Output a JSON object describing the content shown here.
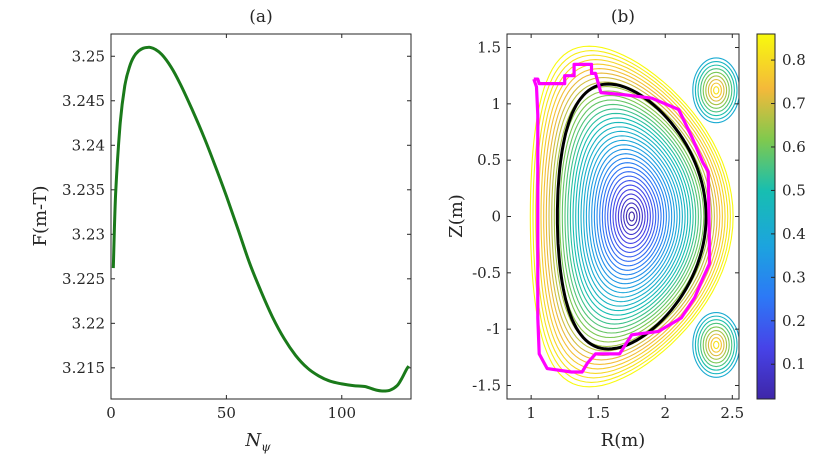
{
  "chart_data": [
    {
      "type": "line",
      "title": "(a)",
      "xlabel": "N",
      "xlabel_sub": "ψ",
      "ylabel": "F(m-T)",
      "xlim": [
        0,
        130
      ],
      "ylim": [
        3.2115,
        3.2525
      ],
      "x_ticks": [
        0,
        50,
        100
      ],
      "x_tick_labels": [
        "0",
        "50",
        "100"
      ],
      "y_ticks": [
        3.215,
        3.22,
        3.225,
        3.23,
        3.235,
        3.24,
        3.245,
        3.25
      ],
      "y_tick_labels": [
        "3.215",
        "3.22",
        "3.225",
        "3.23",
        "3.235",
        "3.24",
        "3.245",
        "3.25"
      ],
      "series": [
        {
          "name": "F",
          "color": "#1a7a1a",
          "x": [
            1,
            2,
            4,
            6,
            8,
            10,
            12,
            14,
            16,
            17,
            19,
            22,
            26,
            30,
            35,
            40,
            45,
            50,
            55,
            60,
            65,
            70,
            75,
            80,
            85,
            90,
            95,
            100,
            105,
            110,
            115,
            118,
            121,
            124,
            126,
            128,
            129
          ],
          "values": [
            3.2262,
            3.2345,
            3.2425,
            3.2467,
            3.2488,
            3.25,
            3.2506,
            3.2509,
            3.251,
            3.251,
            3.2508,
            3.2502,
            3.2488,
            3.2469,
            3.2441,
            3.2411,
            3.2378,
            3.2343,
            3.2306,
            3.2268,
            3.2236,
            3.2207,
            3.2183,
            3.2164,
            3.215,
            3.2141,
            3.2135,
            3.2132,
            3.213,
            3.2129,
            3.2125,
            3.2124,
            3.2125,
            3.213,
            3.2138,
            3.2148,
            3.2152
          ]
        }
      ]
    },
    {
      "type": "contour",
      "title": "(b)",
      "xlabel": "R(m)",
      "ylabel": "Z(m)",
      "xlim": [
        0.82,
        2.55
      ],
      "ylim": [
        -1.62,
        1.62
      ],
      "x_ticks": [
        1,
        1.5,
        2,
        2.5
      ],
      "x_tick_labels": [
        "1",
        "1.5",
        "2",
        "2.5"
      ],
      "y_ticks": [
        -1.5,
        -1,
        -0.5,
        0,
        0.5,
        1,
        1.5
      ],
      "y_tick_labels": [
        "-1.5",
        "-1",
        "-0.5",
        "0",
        "0.5",
        "1",
        "1.5"
      ],
      "magnetic_axis": [
        1.75,
        0.0
      ],
      "x_points": [
        [
          2.38,
          1.12
        ],
        [
          2.38,
          -1.14
        ]
      ],
      "contour_levels": 38,
      "lcfs_color": "#000000",
      "wall_color": "#ff00ff",
      "wall": [
        [
          1.02,
          1.22
        ],
        [
          1.05,
          1.22
        ],
        [
          1.06,
          1.18
        ],
        [
          1.25,
          1.18
        ],
        [
          1.25,
          1.25
        ],
        [
          1.32,
          1.25
        ],
        [
          1.32,
          1.35
        ],
        [
          1.45,
          1.35
        ],
        [
          1.45,
          1.27
        ],
        [
          1.48,
          1.27
        ],
        [
          1.52,
          1.1
        ],
        [
          1.7,
          1.08
        ],
        [
          1.9,
          1.05
        ],
        [
          2.1,
          0.95
        ],
        [
          2.2,
          0.7
        ],
        [
          2.28,
          0.48
        ],
        [
          2.32,
          0.4
        ],
        [
          2.33,
          -0.3
        ],
        [
          2.33,
          -0.42
        ],
        [
          2.28,
          -0.55
        ],
        [
          2.22,
          -0.72
        ],
        [
          2.12,
          -0.9
        ],
        [
          1.95,
          -1.02
        ],
        [
          1.75,
          -1.05
        ],
        [
          1.66,
          -1.22
        ],
        [
          1.48,
          -1.22
        ],
        [
          1.42,
          -1.3
        ],
        [
          1.4,
          -1.34
        ],
        [
          1.38,
          -1.38
        ],
        [
          1.3,
          -1.38
        ],
        [
          1.12,
          -1.35
        ],
        [
          1.06,
          -1.22
        ],
        [
          1.05,
          -0.9
        ],
        [
          1.05,
          0.9
        ],
        [
          1.04,
          1.15
        ],
        [
          1.02,
          1.22
        ]
      ],
      "colorbar": {
        "ticks": [
          0.1,
          0.2,
          0.3,
          0.4,
          0.5,
          0.6,
          0.7,
          0.8
        ],
        "tick_labels": [
          "0.1",
          "0.2",
          "0.3",
          "0.4",
          "0.5",
          "0.6",
          "0.7",
          "0.8"
        ],
        "range": [
          0.02,
          0.86
        ],
        "colormap": "parula"
      }
    }
  ]
}
